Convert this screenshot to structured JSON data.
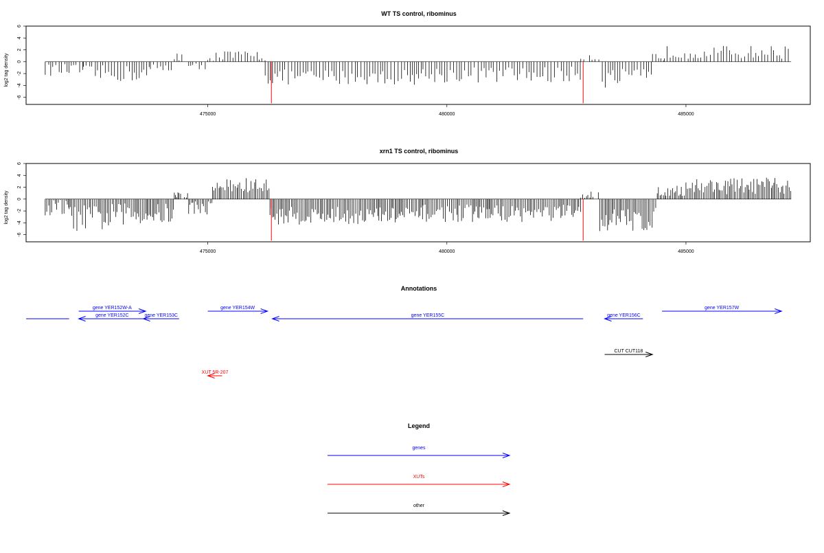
{
  "chart_data": [
    {
      "type": "bar",
      "title": "WT TS control, ribominus",
      "xlabel": "",
      "ylabel": "log2 tag density",
      "xlim": [
        471200,
        487600
      ],
      "ylim": [
        -7.2,
        6
      ],
      "x_ticks": [
        475000,
        480000,
        485000
      ],
      "y_ticks": [
        -6,
        -4,
        -2,
        0,
        2,
        4,
        6
      ],
      "highlight_bars": [
        {
          "x": 476330,
          "value": -7,
          "color": "#ff0000"
        },
        {
          "x": 482850,
          "value": -7,
          "color": "#ff0000"
        }
      ],
      "segments": [
        {
          "start": 471600,
          "end": 472400,
          "mean": -1.4,
          "amp": 1.0
        },
        {
          "start": 472400,
          "end": 473800,
          "mean": -2.0,
          "amp": 1.4
        },
        {
          "start": 473800,
          "end": 474300,
          "mean": -1.1,
          "amp": 0.8
        },
        {
          "start": 474300,
          "end": 474500,
          "mean": 1.0,
          "amp": 0.8
        },
        {
          "start": 474600,
          "end": 475000,
          "mean": -1.0,
          "amp": 0.8
        },
        {
          "start": 475000,
          "end": 476200,
          "mean": 1.0,
          "amp": 0.9
        },
        {
          "start": 476200,
          "end": 479500,
          "mean": -2.6,
          "amp": 1.3
        },
        {
          "start": 479500,
          "end": 482800,
          "mean": -2.2,
          "amp": 1.4
        },
        {
          "start": 482800,
          "end": 483200,
          "mean": 0.8,
          "amp": 0.8
        },
        {
          "start": 483250,
          "end": 484300,
          "mean": -2.8,
          "amp": 1.6
        },
        {
          "start": 484300,
          "end": 484550,
          "mean": 0.8,
          "amp": 0.7
        },
        {
          "start": 484550,
          "end": 487200,
          "mean": 1.6,
          "amp": 1.1
        }
      ]
    },
    {
      "type": "bar",
      "title": "xrn1 TS control, ribominus",
      "xlabel": "",
      "ylabel": "log2 tag density",
      "xlim": [
        471200,
        487600
      ],
      "ylim": [
        -7.2,
        6
      ],
      "x_ticks": [
        475000,
        480000,
        485000
      ],
      "y_ticks": [
        -6,
        -4,
        -2,
        0,
        2,
        4,
        6
      ],
      "highlight_bars": [
        {
          "x": 476330,
          "value": -7,
          "color": "#ff0000"
        },
        {
          "x": 482850,
          "value": -7,
          "color": "#ff0000"
        }
      ],
      "segments": [
        {
          "start": 471600,
          "end": 472100,
          "mean": -1.5,
          "amp": 1.5
        },
        {
          "start": 472100,
          "end": 473000,
          "mean": -3.2,
          "amp": 2.2
        },
        {
          "start": 473000,
          "end": 474300,
          "mean": -2.5,
          "amp": 1.8
        },
        {
          "start": 474300,
          "end": 474600,
          "mean": 0.6,
          "amp": 0.8
        },
        {
          "start": 474600,
          "end": 475100,
          "mean": -1.4,
          "amp": 1.2
        },
        {
          "start": 475100,
          "end": 476300,
          "mean": 2.2,
          "amp": 1.4
        },
        {
          "start": 476300,
          "end": 479500,
          "mean": -2.8,
          "amp": 1.5
        },
        {
          "start": 479500,
          "end": 482800,
          "mean": -2.4,
          "amp": 1.5
        },
        {
          "start": 482800,
          "end": 483200,
          "mean": 0.6,
          "amp": 0.8
        },
        {
          "start": 483200,
          "end": 484400,
          "mean": -3.5,
          "amp": 2.0
        },
        {
          "start": 484400,
          "end": 485000,
          "mean": 1.4,
          "amp": 0.9
        },
        {
          "start": 485000,
          "end": 487200,
          "mean": 2.2,
          "amp": 1.4
        }
      ]
    }
  ],
  "annotations": {
    "title": "Annotations",
    "features": [
      {
        "label": "",
        "start": 471200,
        "end": 472100,
        "strand": "+",
        "row": 1,
        "color": "#0000ff"
      },
      {
        "label": "gene YER152W-A",
        "start": 472300,
        "end": 473700,
        "strand": "+",
        "row": 0,
        "color": "#0000ff"
      },
      {
        "label": "gene YER152C",
        "start": 472300,
        "end": 473700,
        "strand": "-",
        "row": 1,
        "color": "#0000ff"
      },
      {
        "label": "gene YER153C",
        "start": 473650,
        "end": 474400,
        "strand": "-",
        "row": 1,
        "color": "#0000ff"
      },
      {
        "label": "gene YER154W",
        "start": 475000,
        "end": 476250,
        "strand": "+",
        "row": 0,
        "color": "#0000ff"
      },
      {
        "label": "gene YER155C",
        "start": 476350,
        "end": 482850,
        "strand": "-",
        "row": 1,
        "color": "#0000ff"
      },
      {
        "label": "gene YER156C",
        "start": 483300,
        "end": 484100,
        "strand": "-",
        "row": 1,
        "color": "#0000ff"
      },
      {
        "label": "gene YER157W",
        "start": 484500,
        "end": 487000,
        "strand": "+",
        "row": 0,
        "color": "#0000ff"
      },
      {
        "label": "CUT CUT118",
        "start": 483300,
        "end": 484300,
        "strand": "+",
        "row": 2,
        "color": "#000000"
      },
      {
        "label": "XUT 5R-207",
        "start": 475000,
        "end": 475300,
        "strand": "-",
        "row": 3,
        "color": "#ff0000"
      }
    ]
  },
  "legend": {
    "title": "Legend",
    "items": [
      {
        "label": "genes",
        "color": "#0000ff"
      },
      {
        "label": "XUTs",
        "color": "#ff0000"
      },
      {
        "label": "other",
        "color": "#000000"
      }
    ]
  }
}
